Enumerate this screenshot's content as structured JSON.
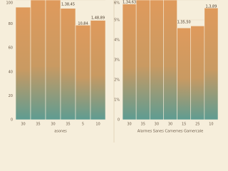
{
  "chart_data": [
    {
      "type": "bar",
      "x_label": "asones",
      "categories": [
        "30",
        "35",
        "30",
        "35",
        "5",
        "10"
      ],
      "values": [
        94,
        100,
        100,
        93,
        79,
        83
      ],
      "color": "#df9a5c",
      "ylim": [
        0,
        100
      ],
      "yticks": [
        0,
        20,
        40,
        60,
        80,
        100
      ],
      "grid": true,
      "annotations": [
        "1,38,45",
        "10,84",
        "1,48,89"
      ]
    },
    {
      "type": "bar",
      "x_label": "Alarmes Sanes Camemes Gamercale",
      "categories": [
        "30",
        "35",
        "30",
        "30",
        "15",
        "25",
        "10"
      ],
      "values": [
        5.8,
        6,
        6,
        6,
        4.6,
        4.7,
        5.6
      ],
      "color": "#df9a5c",
      "ylim": [
        0,
        6
      ],
      "yticks": [
        {
          "value": 0,
          "label": "0"
        },
        {
          "value": 1,
          "label": "1%"
        },
        {
          "value": 2,
          "label": "2%"
        },
        {
          "value": 3,
          "label": "3%"
        },
        {
          "value": 4,
          "label": "4%"
        },
        {
          "value": 5,
          "label": "5%"
        },
        {
          "value": 6,
          "label": "6%"
        }
      ],
      "grid": true,
      "annotations": [
        "1,34,63",
        "1,35,50",
        "1,3,89"
      ]
    }
  ]
}
